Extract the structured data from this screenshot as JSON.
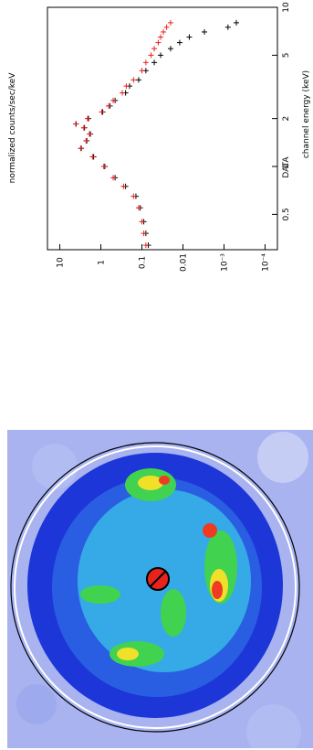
{
  "spectrum": {
    "title": "DATA",
    "xlabel": "channel energy (keV)",
    "ylabel": "normalized counts/sec/keV",
    "x_ticks": [
      {
        "value": 0.5,
        "label": "0.5"
      },
      {
        "value": 1,
        "label": "1"
      },
      {
        "value": 2,
        "label": "2"
      },
      {
        "value": 5,
        "label": "5"
      },
      {
        "value": 10,
        "label": "10"
      }
    ],
    "y_ticks": [
      {
        "value": 0.0001,
        "label": "10⁻⁴"
      },
      {
        "value": 0.001,
        "label": "10⁻³"
      },
      {
        "value": 0.01,
        "label": "0.01"
      },
      {
        "value": 0.1,
        "label": "0.1"
      },
      {
        "value": 1,
        "label": "1"
      },
      {
        "value": 10,
        "label": "10"
      }
    ]
  },
  "chart_data": {
    "type": "scatter",
    "title": "DATA",
    "xlabel": "channel energy (keV)",
    "ylabel": "normalized counts/sec/keV",
    "xscale": "log",
    "yscale": "log",
    "xlim": [
      0.3,
      10
    ],
    "ylim": [
      5e-05,
      20
    ],
    "rotation": "figure rotated 90 degrees clockwise on the page",
    "series": [
      {
        "color": "#000000",
        "x": [
          0.32,
          0.38,
          0.45,
          0.55,
          0.65,
          0.75,
          0.85,
          1.0,
          1.15,
          1.3,
          1.45,
          1.6,
          1.75,
          1.85,
          2.0,
          2.2,
          2.4,
          2.6,
          2.9,
          3.2,
          3.5,
          4.0,
          4.5,
          5.0,
          5.5,
          6.0,
          6.5,
          7.0,
          7.5,
          8.0
        ],
        "y": [
          0.07,
          0.08,
          0.09,
          0.11,
          0.14,
          0.25,
          0.45,
          0.8,
          1.5,
          3.0,
          2.2,
          1.8,
          2.5,
          4.0,
          2.0,
          0.9,
          0.6,
          0.45,
          0.25,
          0.2,
          0.12,
          0.08,
          0.05,
          0.035,
          0.02,
          0.012,
          0.007,
          0.003,
          0.0008,
          0.0005
        ]
      },
      {
        "color": "#e8231e",
        "x": [
          0.32,
          0.38,
          0.45,
          0.55,
          0.65,
          0.75,
          0.85,
          1.0,
          1.15,
          1.3,
          1.45,
          1.6,
          1.75,
          1.85,
          2.0,
          2.2,
          2.4,
          2.6,
          2.9,
          3.2,
          3.5,
          4.0,
          4.5,
          5.0,
          5.5,
          6.0,
          6.5,
          7.0,
          7.5,
          8.0
        ],
        "y": [
          0.08,
          0.09,
          0.1,
          0.12,
          0.16,
          0.28,
          0.5,
          0.85,
          1.6,
          3.1,
          2.3,
          1.9,
          2.6,
          4.1,
          2.1,
          0.95,
          0.65,
          0.5,
          0.3,
          0.24,
          0.16,
          0.1,
          0.08,
          0.06,
          0.05,
          0.04,
          0.035,
          0.03,
          0.025,
          0.02
        ]
      }
    ]
  },
  "image": {
    "colors": {
      "background": "#a8b3f0",
      "low": "#1d36d8",
      "mid": "#37b7e6",
      "green": "#41d24f",
      "yellow": "#f0e02a",
      "high": "#ee3b22",
      "circle": "#ffffff"
    }
  }
}
